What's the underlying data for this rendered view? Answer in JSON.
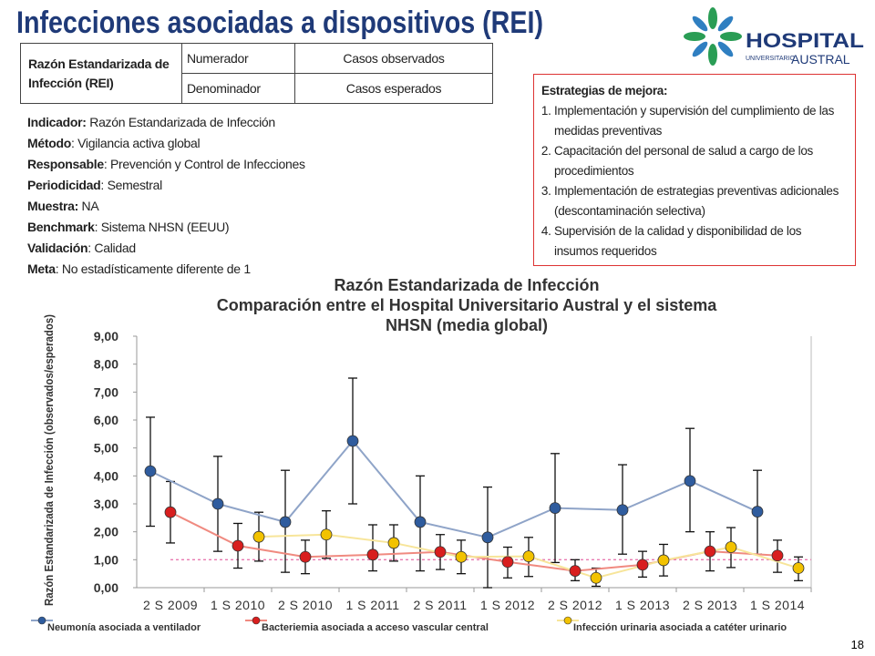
{
  "header": {
    "title": "Infecciones asociadas a dispositivos (REI)"
  },
  "logo": {
    "name": "HOSPITAL",
    "sub1": "UNIVERSITARIO",
    "sub2": "AUSTRAL"
  },
  "table": {
    "label": "Razón Estandarizada de Infección (REI)",
    "rows": [
      [
        "Numerador",
        "Casos observados"
      ],
      [
        "Denominador",
        "Casos esperados"
      ]
    ]
  },
  "indicators": [
    {
      "label": "Indicador:",
      "text": " Razón Estandarizada de Infección"
    },
    {
      "label": "Método",
      "text": ": Vigilancia activa global"
    },
    {
      "label": "Responsable",
      "text": ": Prevención y Control de Infecciones"
    },
    {
      "label": "Periodicidad",
      "text": ": Semestral"
    },
    {
      "label": "Muestra:",
      "text": " NA"
    },
    {
      "label": "Benchmark",
      "text": ": Sistema NHSN (EEUU)"
    },
    {
      "label": "Validación",
      "text": ": Calidad"
    },
    {
      "label": "Meta",
      "text": ": No estadísticamente diferente de 1"
    }
  ],
  "strategies": {
    "title": "Estrategias de mejora:",
    "items": [
      "Implementación y supervisión del cumplimiento de las medidas preventivas",
      "Capacitación del personal de salud a cargo de los procedimientos",
      "Implementación de  estrategias preventivas adicionales (descontaminación selectiva)",
      "Supervisión de  la calidad y disponibilidad de los insumos requeridos"
    ]
  },
  "chart_data": {
    "type": "line",
    "title": [
      "Razón Estandarizada de Infección",
      "Comparación entre el Hospital Universitario Austral y el sistema",
      "NHSN (media global)"
    ],
    "y_label": "Razón Estandarizada de Infección (observados/esperados)",
    "categories": [
      "2 S 2009",
      "1 S 2010",
      "2 S 2010",
      "1 S 2011",
      "2 S 2011",
      "1 S 2012",
      "2 S 2012",
      "1 S 2013",
      "2 S 2013",
      "1 S 2014"
    ],
    "ylim": [
      0,
      9
    ],
    "yticks": [
      {
        "value": 0,
        "label": "0,00"
      },
      {
        "value": 1,
        "label": "1,00"
      },
      {
        "value": 2,
        "label": "2,00"
      },
      {
        "value": 3,
        "label": "3,00"
      },
      {
        "value": 4,
        "label": "4,00"
      },
      {
        "value": 5,
        "label": "5,00"
      },
      {
        "value": 6,
        "label": "6,00"
      },
      {
        "value": 7,
        "label": "7,00"
      },
      {
        "value": 8,
        "label": "8,00"
      },
      {
        "value": 9,
        "label": "9,00"
      }
    ],
    "reference_line": {
      "value": 1,
      "color": "#e87ab0"
    },
    "series": [
      {
        "name": "Neumonía asociada a ventilador",
        "color": "#2f5c9e",
        "line_color": "#8fa4c8",
        "values": [
          4.17,
          3.0,
          2.35,
          5.25,
          2.35,
          1.8,
          2.85,
          2.78,
          3.82,
          2.72
        ],
        "lower": [
          2.2,
          1.3,
          0.55,
          3.0,
          0.6,
          0,
          0.9,
          1.2,
          2.0,
          1.2
        ],
        "upper": [
          6.1,
          4.7,
          4.2,
          7.5,
          4.0,
          3.6,
          4.8,
          4.4,
          5.7,
          4.2
        ]
      },
      {
        "name": "Bacteriemia asociada a acceso vascular central",
        "color": "#d81e1e",
        "line_color": "#f08a80",
        "values": [
          2.7,
          1.5,
          1.1,
          1.18,
          1.28,
          0.92,
          0.6,
          0.82,
          1.3,
          1.15
        ],
        "lower": [
          1.6,
          0.7,
          0.5,
          0.6,
          0.65,
          0.35,
          0.25,
          0.38,
          0.6,
          0.55
        ],
        "upper": [
          3.8,
          2.3,
          1.7,
          2.25,
          1.9,
          1.45,
          1.0,
          1.3,
          2.0,
          1.7
        ]
      },
      {
        "name": "Infección urinaria asociada a catéter urinario",
        "color": "#f2c200",
        "line_color": "#f7e59a",
        "values": [
          null,
          1.82,
          1.9,
          1.6,
          1.1,
          1.12,
          0.35,
          0.98,
          1.45,
          0.7
        ],
        "lower": [
          null,
          0.95,
          1.05,
          0.95,
          0.5,
          0.4,
          0.05,
          0.42,
          0.72,
          0.25
        ],
        "upper": [
          null,
          2.7,
          2.75,
          2.25,
          1.7,
          1.8,
          0.7,
          1.55,
          2.15,
          1.1
        ]
      }
    ]
  },
  "page_number": "18"
}
